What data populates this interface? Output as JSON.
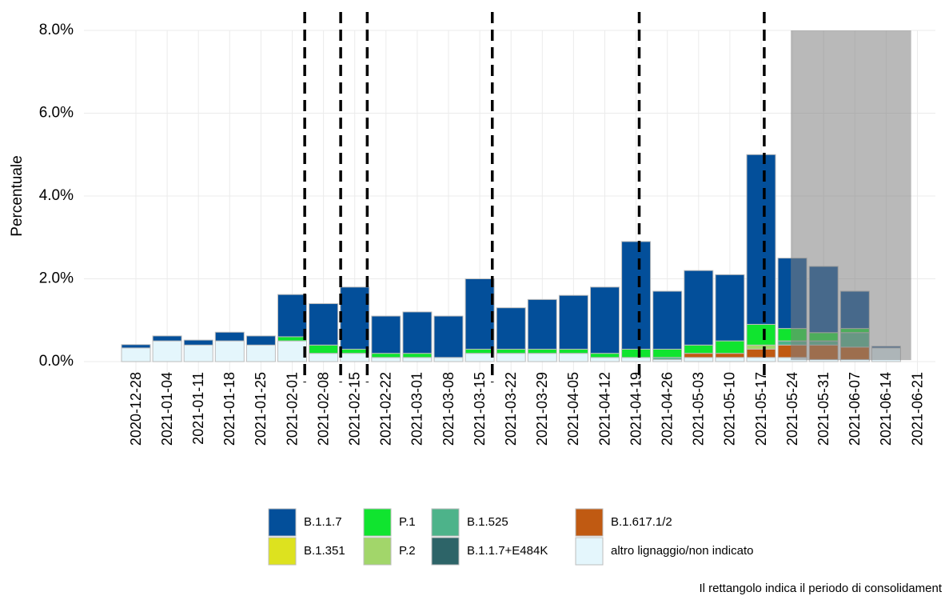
{
  "chart_data": {
    "type": "stacked_bar",
    "y_label": "Percentuale",
    "caption": "Il rettangolo indica il periodo di consolidament",
    "categories": [
      "2020-12-28",
      "2021-01-04",
      "2021-01-11",
      "2021-01-18",
      "2021-01-25",
      "2021-02-01",
      "2021-02-08",
      "2021-02-15",
      "2021-02-22",
      "2021-03-01",
      "2021-03-08",
      "2021-03-15",
      "2021-03-22",
      "2021-03-29",
      "2021-04-05",
      "2021-04-12",
      "2021-04-19",
      "2021-04-26",
      "2021-05-03",
      "2021-05-10",
      "2021-05-17",
      "2021-05-24",
      "2021-05-31",
      "2021-06-07",
      "2021-06-14",
      "2021-06-21"
    ],
    "series": [
      {
        "name": "B.1.1.7",
        "color": "#034f9a",
        "values": [
          0.08,
          0.12,
          0.12,
          0.21,
          0.22,
          1.02,
          1.0,
          1.5,
          0.9,
          1.0,
          1.0,
          1.7,
          1.0,
          1.2,
          1.3,
          1.6,
          2.6,
          1.4,
          1.8,
          1.6,
          4.1,
          1.7,
          1.6,
          0.9,
          0.04,
          null
        ]
      },
      {
        "name": "B.1.351",
        "color": "#dde21f",
        "values": [
          0,
          0,
          0,
          0,
          0,
          0,
          0,
          0,
          0,
          0,
          0,
          0,
          0,
          0,
          0,
          0,
          0,
          0,
          0,
          0,
          0,
          0,
          0,
          0,
          0,
          null
        ]
      },
      {
        "name": "P.1",
        "color": "#10e42f",
        "values": [
          0,
          0,
          0,
          0,
          0,
          0.1,
          0.2,
          0.1,
          0.1,
          0.1,
          0,
          0.1,
          0.1,
          0.1,
          0.1,
          0.1,
          0.2,
          0.2,
          0.2,
          0.3,
          0.5,
          0.3,
          0.2,
          0.1,
          0,
          null
        ]
      },
      {
        "name": "P.2",
        "color": "#a2d66a",
        "values": [
          0,
          0,
          0,
          0,
          0,
          0,
          0,
          0,
          0,
          0,
          0,
          0,
          0,
          0,
          0,
          0,
          0,
          0,
          0,
          0,
          0.1,
          0,
          0,
          0,
          0,
          null
        ]
      },
      {
        "name": "B.1.525",
        "color": "#4db38a",
        "values": [
          0,
          0,
          0,
          0,
          0,
          0,
          0,
          0,
          0,
          0,
          0,
          0,
          0,
          0,
          0,
          0,
          0,
          0.05,
          0,
          0,
          0,
          0.1,
          0.1,
          0.35,
          0,
          null
        ]
      },
      {
        "name": "B.1.1.7+E484K",
        "color": "#2d6468",
        "values": [
          0,
          0,
          0,
          0,
          0,
          0,
          0,
          0,
          0,
          0,
          0,
          0,
          0,
          0,
          0,
          0,
          0,
          0,
          0,
          0,
          0,
          0,
          0,
          0,
          0,
          null
        ]
      },
      {
        "name": "B.1.617.1/2",
        "color": "#c05a12",
        "values": [
          0,
          0,
          0,
          0,
          0,
          0,
          0,
          0,
          0,
          0,
          0,
          0,
          0,
          0,
          0,
          0,
          0,
          0,
          0.1,
          0.1,
          0.2,
          0.3,
          0.35,
          0.3,
          0,
          null
        ]
      },
      {
        "name": "altro lignaggio/non indicato",
        "color": "#e4f6fc",
        "values": [
          0.33,
          0.5,
          0.4,
          0.5,
          0.4,
          0.5,
          0.2,
          0.2,
          0.1,
          0.1,
          0.1,
          0.2,
          0.2,
          0.2,
          0.2,
          0.1,
          0.1,
          0.05,
          0.1,
          0.1,
          0.1,
          0.1,
          0.05,
          0.05,
          0.33,
          null
        ]
      }
    ],
    "ylim": [
      -0.35,
      8.0
    ],
    "yticks": [
      {
        "value": 0,
        "label": "0.0%"
      },
      {
        "value": 2,
        "label": "2.0%"
      },
      {
        "value": 4,
        "label": "4.0%"
      },
      {
        "value": 6,
        "label": "6.0%"
      },
      {
        "value": 8,
        "label": "8.0%"
      }
    ],
    "vlines": [
      5.4,
      6.55,
      7.4,
      11.4,
      16.1,
      20.1
    ],
    "shaded_range": [
      20.95,
      24.8
    ],
    "grid": true
  }
}
